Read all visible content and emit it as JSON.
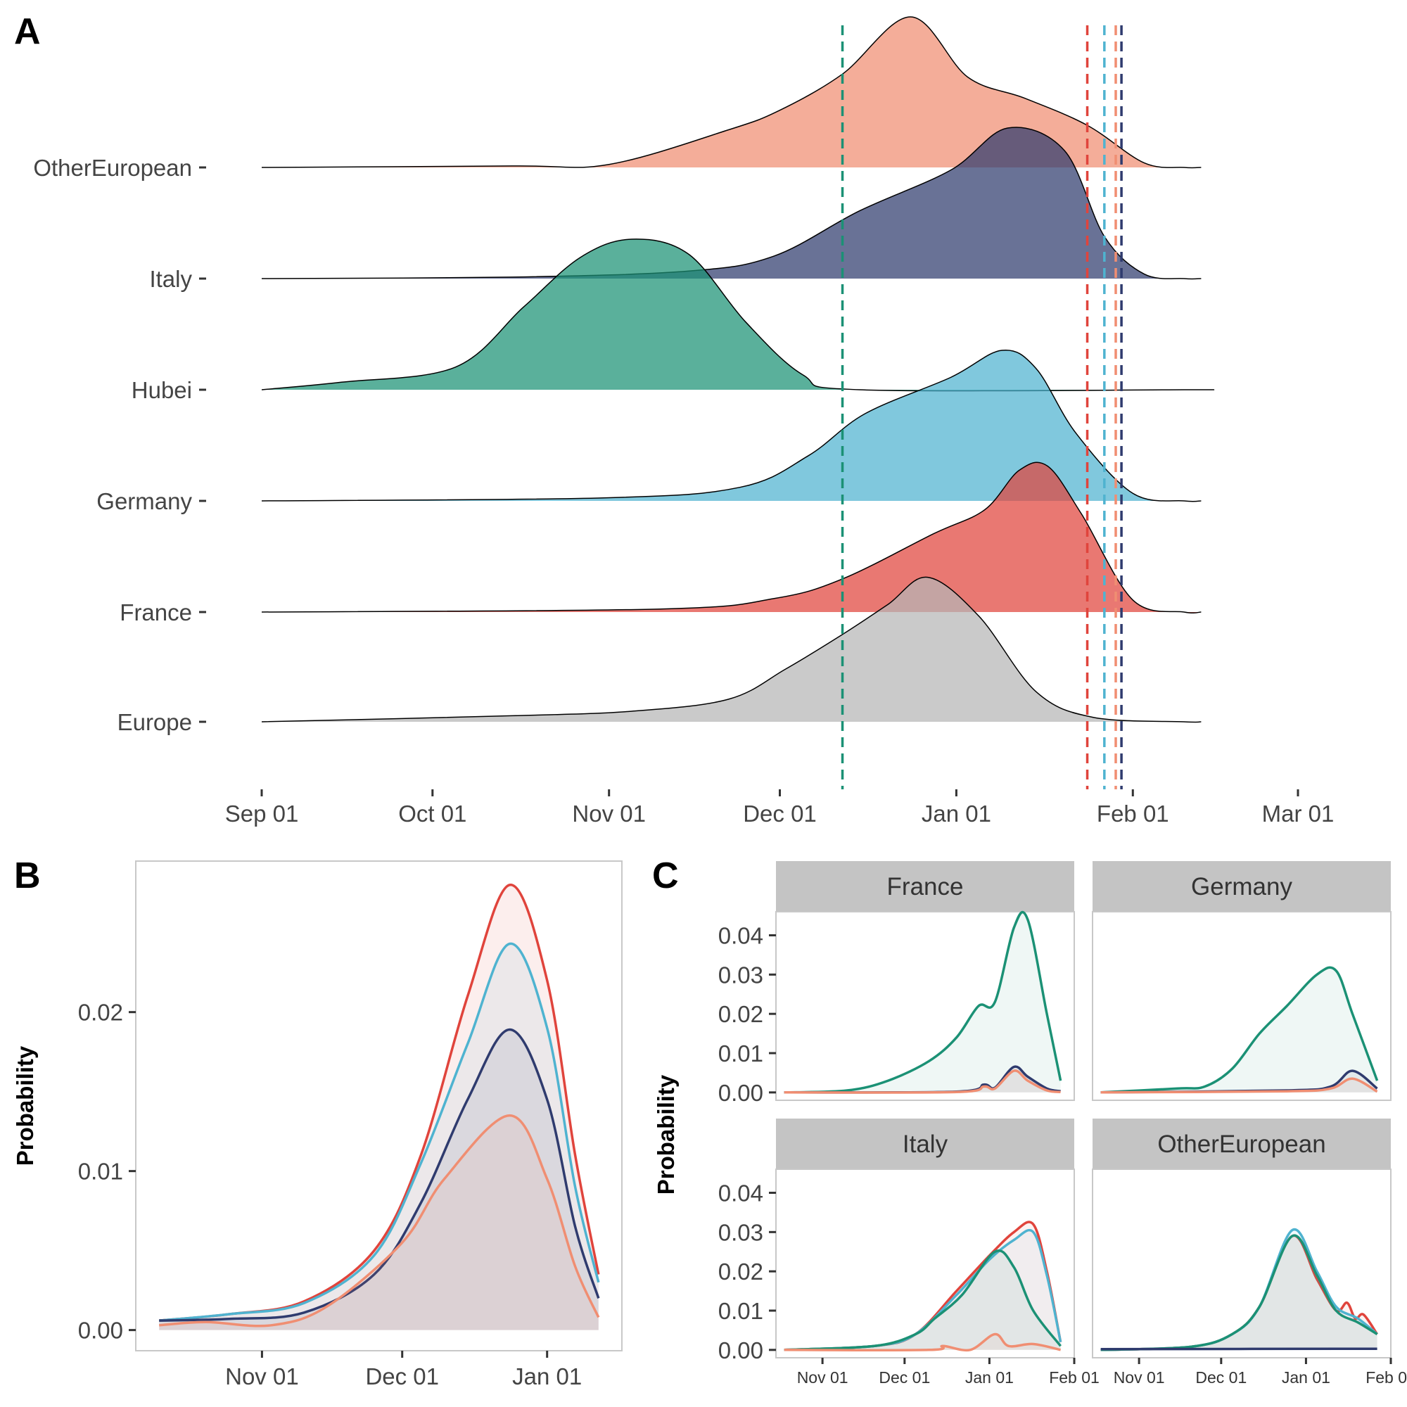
{
  "figure": {
    "panel_labels": [
      "A",
      "B",
      "C"
    ],
    "colors": {
      "OtherEuropean": "#F08E72",
      "Italy": "#2F3B6E",
      "Hubei": "#1B9175",
      "Germany": "#4FB3D0",
      "France": "#E0443C",
      "Europe": "#B5B5B5"
    }
  },
  "chart_data": [
    {
      "panel": "A",
      "type": "area",
      "style": "ridgeline density",
      "x_axis": {
        "ticks": [
          "Sep 01",
          "Oct 01",
          "Nov 01",
          "Dec 01",
          "Jan 01",
          "Feb 01",
          "Mar 01"
        ],
        "tick_values": [
          "2019-09-01",
          "2019-10-01",
          "2019-11-01",
          "2019-12-01",
          "2020-01-01",
          "2020-02-01",
          "2020-03-01"
        ],
        "range": [
          "2019-09-01",
          "2020-03-01"
        ]
      },
      "y_categories": [
        "OtherEuropean",
        "Italy",
        "Hubei",
        "Germany",
        "France",
        "Europe"
      ],
      "grid": false,
      "series": [
        {
          "name": "OtherEuropean",
          "x": [
            "2019-09-01",
            "2019-10-15",
            "2019-11-01",
            "2019-11-22",
            "2019-12-01",
            "2019-12-12",
            "2019-12-24",
            "2020-01-03",
            "2020-01-13",
            "2020-01-24",
            "2020-02-03",
            "2020-02-10"
          ],
          "y": [
            0,
            0.01,
            0.02,
            0.25,
            0.38,
            0.62,
            1.0,
            0.6,
            0.46,
            0.28,
            0.03,
            0
          ]
        },
        {
          "name": "Italy",
          "x": [
            "2019-09-01",
            "2019-10-15",
            "2019-11-15",
            "2019-11-30",
            "2019-12-15",
            "2019-12-31",
            "2020-01-10",
            "2020-01-20",
            "2020-01-27",
            "2020-02-03",
            "2020-02-10"
          ],
          "y": [
            0,
            0.01,
            0.05,
            0.15,
            0.45,
            0.72,
            1.0,
            0.85,
            0.28,
            0.03,
            0
          ]
        },
        {
          "name": "Hubei",
          "x": [
            "2019-09-01",
            "2019-09-15",
            "2019-10-05",
            "2019-10-17",
            "2019-10-27",
            "2019-11-05",
            "2019-11-15",
            "2019-11-25",
            "2019-12-05",
            "2019-12-15",
            "2020-02-10"
          ],
          "y": [
            0,
            0.05,
            0.15,
            0.55,
            0.88,
            1.0,
            0.9,
            0.45,
            0.1,
            0,
            0
          ]
        },
        {
          "name": "Germany",
          "x": [
            "2019-09-01",
            "2019-10-31",
            "2019-11-24",
            "2019-12-06",
            "2019-12-16",
            "2019-12-31",
            "2020-01-09",
            "2020-01-15",
            "2020-01-22",
            "2020-02-01",
            "2020-02-10"
          ],
          "y": [
            0,
            0.02,
            0.09,
            0.3,
            0.58,
            0.82,
            1.0,
            0.88,
            0.45,
            0.05,
            0
          ]
        },
        {
          "name": "France",
          "x": [
            "2019-09-01",
            "2019-11-10",
            "2019-11-30",
            "2019-12-12",
            "2019-12-28",
            "2020-01-06",
            "2020-01-12",
            "2020-01-17",
            "2020-01-23",
            "2020-02-01",
            "2020-02-10"
          ],
          "y": [
            0,
            0.02,
            0.09,
            0.22,
            0.52,
            0.68,
            0.94,
            0.97,
            0.65,
            0.08,
            0
          ]
        },
        {
          "name": "Europe",
          "x": [
            "2019-09-01",
            "2019-10-15",
            "2019-11-05",
            "2019-11-22",
            "2019-12-02",
            "2019-12-12",
            "2019-12-20",
            "2019-12-27",
            "2020-01-05",
            "2020-01-15",
            "2020-01-25",
            "2020-02-10"
          ],
          "y": [
            0,
            0.04,
            0.07,
            0.15,
            0.35,
            0.58,
            0.78,
            0.96,
            0.7,
            0.2,
            0.03,
            0
          ]
        }
      ],
      "vlines": [
        {
          "series": "Hubei",
          "x": "2019-12-12"
        },
        {
          "series": "France",
          "x": "2020-01-24"
        },
        {
          "series": "Germany",
          "x": "2020-01-27"
        },
        {
          "series": "OtherEuropean",
          "x": "2020-01-29"
        },
        {
          "series": "Italy",
          "x": "2020-01-30"
        }
      ]
    },
    {
      "panel": "B",
      "type": "area",
      "ylabel": "Probability",
      "x_axis": {
        "ticks": [
          "Nov 01",
          "Dec 01",
          "Jan 01"
        ],
        "tick_values": [
          "2019-11-01",
          "2019-12-01",
          "2020-01-01"
        ],
        "range": [
          "2019-10-05",
          "2020-01-17"
        ]
      },
      "y_axis": {
        "ticks": [
          "0.00",
          "0.01",
          "0.02"
        ],
        "tick_values": [
          0,
          0.01,
          0.02
        ],
        "range": [
          -0.0013,
          0.0295
        ]
      },
      "grid": false,
      "series": [
        {
          "name": "France",
          "x": [
            "2019-10-10",
            "2019-10-25",
            "2019-11-10",
            "2019-11-25",
            "2019-12-05",
            "2019-12-15",
            "2019-12-24",
            "2020-01-01",
            "2020-01-07",
            "2020-01-12"
          ],
          "y": [
            0.0006,
            0.001,
            0.0018,
            0.005,
            0.011,
            0.021,
            0.028,
            0.022,
            0.011,
            0.0035
          ]
        },
        {
          "name": "Germany",
          "x": [
            "2019-10-10",
            "2019-10-25",
            "2019-11-10",
            "2019-11-25",
            "2019-12-05",
            "2019-12-15",
            "2019-12-24",
            "2020-01-01",
            "2020-01-07",
            "2020-01-12"
          ],
          "y": [
            0.0006,
            0.001,
            0.0017,
            0.0047,
            0.0105,
            0.018,
            0.0243,
            0.019,
            0.009,
            0.003
          ]
        },
        {
          "name": "Italy",
          "x": [
            "2019-10-10",
            "2019-10-25",
            "2019-11-10",
            "2019-11-25",
            "2019-12-05",
            "2019-12-15",
            "2019-12-24",
            "2020-01-01",
            "2020-01-07",
            "2020-01-12"
          ],
          "y": [
            0.0006,
            0.0007,
            0.0011,
            0.0035,
            0.008,
            0.0145,
            0.0189,
            0.0145,
            0.0065,
            0.002
          ]
        },
        {
          "name": "OtherEuropean",
          "x": [
            "2019-10-10",
            "2019-10-20",
            "2019-11-03",
            "2019-11-15",
            "2019-12-01",
            "2019-12-10",
            "2019-12-24",
            "2020-01-01",
            "2020-01-07",
            "2020-01-12"
          ],
          "y": [
            0.0003,
            0.0005,
            0.0003,
            0.0015,
            0.0055,
            0.0095,
            0.0135,
            0.0095,
            0.004,
            0.0008
          ]
        }
      ]
    },
    {
      "panel": "C",
      "type": "area",
      "layout": "facets",
      "ylabel": "Probability",
      "x_axis": {
        "ticks": [
          "Nov 01",
          "Dec 01",
          "Jan 01",
          "Feb 01"
        ],
        "tick_values": [
          "2019-11-01",
          "2019-12-01",
          "2020-01-01",
          "2020-02-01"
        ],
        "range": [
          "2019-10-15",
          "2020-02-01"
        ]
      },
      "y_axis": {
        "ticks": [
          "0.00",
          "0.01",
          "0.02",
          "0.03",
          "0.04"
        ],
        "tick_values": [
          0,
          0.01,
          0.02,
          0.03,
          0.04
        ],
        "range": [
          -0.002,
          0.046
        ]
      },
      "grid": false,
      "facets": [
        {
          "title": "France",
          "series": [
            {
              "name": "Hubei",
              "x": [
                "2019-10-18",
                "2019-11-10",
                "2019-11-25",
                "2019-12-10",
                "2019-12-20",
                "2019-12-28",
                "2020-01-03",
                "2020-01-10",
                "2020-01-15",
                "2020-01-22",
                "2020-01-27"
              ],
              "y": [
                0,
                0.0005,
                0.003,
                0.008,
                0.014,
                0.022,
                0.023,
                0.042,
                0.044,
                0.02,
                0.003
              ]
            },
            {
              "name": "Italy",
              "x": [
                "2019-10-18",
                "2019-12-20",
                "2019-12-30",
                "2020-01-03",
                "2020-01-10",
                "2020-01-15",
                "2020-01-22",
                "2020-01-27"
              ],
              "y": [
                0,
                0.0002,
                0.002,
                0.0012,
                0.0065,
                0.004,
                0.001,
                0.0003
              ]
            },
            {
              "name": "OtherEuropean",
              "x": [
                "2019-10-18",
                "2019-12-20",
                "2019-12-30",
                "2020-01-03",
                "2020-01-10",
                "2020-01-15",
                "2020-01-22",
                "2020-01-27"
              ],
              "y": [
                0,
                0.0001,
                0.0015,
                0.001,
                0.0055,
                0.003,
                0.0005,
                0.0001
              ]
            }
          ]
        },
        {
          "title": "Germany",
          "series": [
            {
              "name": "Hubei",
              "x": [
                "2019-10-18",
                "2019-11-15",
                "2019-11-25",
                "2019-12-05",
                "2019-12-15",
                "2019-12-25",
                "2020-01-05",
                "2020-01-12",
                "2020-01-18",
                "2020-01-27"
              ],
              "y": [
                0,
                0.001,
                0.0015,
                0.006,
                0.015,
                0.022,
                0.03,
                0.031,
                0.02,
                0.003
              ]
            },
            {
              "name": "Italy",
              "x": [
                "2019-10-18",
                "2019-12-25",
                "2020-01-10",
                "2020-01-18",
                "2020-01-27"
              ],
              "y": [
                0,
                0.0005,
                0.0015,
                0.0055,
                0.001
              ]
            },
            {
              "name": "OtherEuropean",
              "x": [
                "2019-10-18",
                "2019-12-25",
                "2020-01-10",
                "2020-01-18",
                "2020-01-27"
              ],
              "y": [
                0,
                0.0003,
                0.001,
                0.0035,
                0.0002
              ]
            }
          ]
        },
        {
          "title": "Italy",
          "series": [
            {
              "name": "France",
              "x": [
                "2019-10-18",
                "2019-11-20",
                "2019-12-05",
                "2019-12-20",
                "2020-01-01",
                "2020-01-10",
                "2020-01-17",
                "2020-01-22",
                "2020-01-27"
              ],
              "y": [
                0,
                0.001,
                0.004,
                0.015,
                0.024,
                0.03,
                0.032,
                0.02,
                0.002
              ]
            },
            {
              "name": "Germany",
              "x": [
                "2019-10-18",
                "2019-11-20",
                "2019-12-05",
                "2019-12-20",
                "2020-01-01",
                "2020-01-10",
                "2020-01-17",
                "2020-01-22",
                "2020-01-27"
              ],
              "y": [
                0,
                0.001,
                0.004,
                0.014,
                0.023,
                0.028,
                0.03,
                0.019,
                0.002
              ]
            },
            {
              "name": "Hubei",
              "x": [
                "2019-10-18",
                "2019-11-20",
                "2019-12-05",
                "2019-12-12",
                "2019-12-22",
                "2020-01-03",
                "2020-01-10",
                "2020-01-17",
                "2020-01-27"
              ],
              "y": [
                0,
                0.001,
                0.004,
                0.008,
                0.014,
                0.025,
                0.021,
                0.01,
                0.001
              ]
            },
            {
              "name": "OtherEuropean",
              "x": [
                "2019-10-18",
                "2019-12-10",
                "2019-12-15",
                "2019-12-25",
                "2020-01-03",
                "2020-01-08",
                "2020-01-17",
                "2020-01-27"
              ],
              "y": [
                0,
                0,
                0.001,
                0,
                0.004,
                0.001,
                0.0015,
                0
              ]
            }
          ]
        },
        {
          "title": "OtherEuropean",
          "series": [
            {
              "name": "France",
              "x": [
                "2019-10-18",
                "2019-11-20",
                "2019-12-05",
                "2019-12-15",
                "2019-12-27",
                "2020-01-05",
                "2020-01-12",
                "2020-01-16",
                "2020-01-19",
                "2020-01-22",
                "2020-01-27"
              ],
              "y": [
                0,
                0.0008,
                0.004,
                0.011,
                0.029,
                0.018,
                0.01,
                0.012,
                0.008,
                0.009,
                0.004
              ]
            },
            {
              "name": "Germany",
              "x": [
                "2019-10-18",
                "2019-11-20",
                "2019-12-05",
                "2019-12-15",
                "2019-12-27",
                "2020-01-05",
                "2020-01-12",
                "2020-01-20",
                "2020-01-27"
              ],
              "y": [
                0,
                0.0008,
                0.004,
                0.011,
                0.0305,
                0.02,
                0.011,
                0.008,
                0.004
              ]
            },
            {
              "name": "Hubei",
              "x": [
                "2019-10-18",
                "2019-11-20",
                "2019-12-05",
                "2019-12-15",
                "2019-12-27",
                "2020-01-05",
                "2020-01-12",
                "2020-01-20",
                "2020-01-27"
              ],
              "y": [
                0,
                0.0008,
                0.004,
                0.011,
                0.029,
                0.019,
                0.01,
                0.007,
                0.004
              ]
            },
            {
              "name": "Italy",
              "x": [
                "2019-10-18",
                "2020-01-27"
              ],
              "y": [
                0.0002,
                0.0003
              ]
            }
          ]
        }
      ]
    }
  ]
}
